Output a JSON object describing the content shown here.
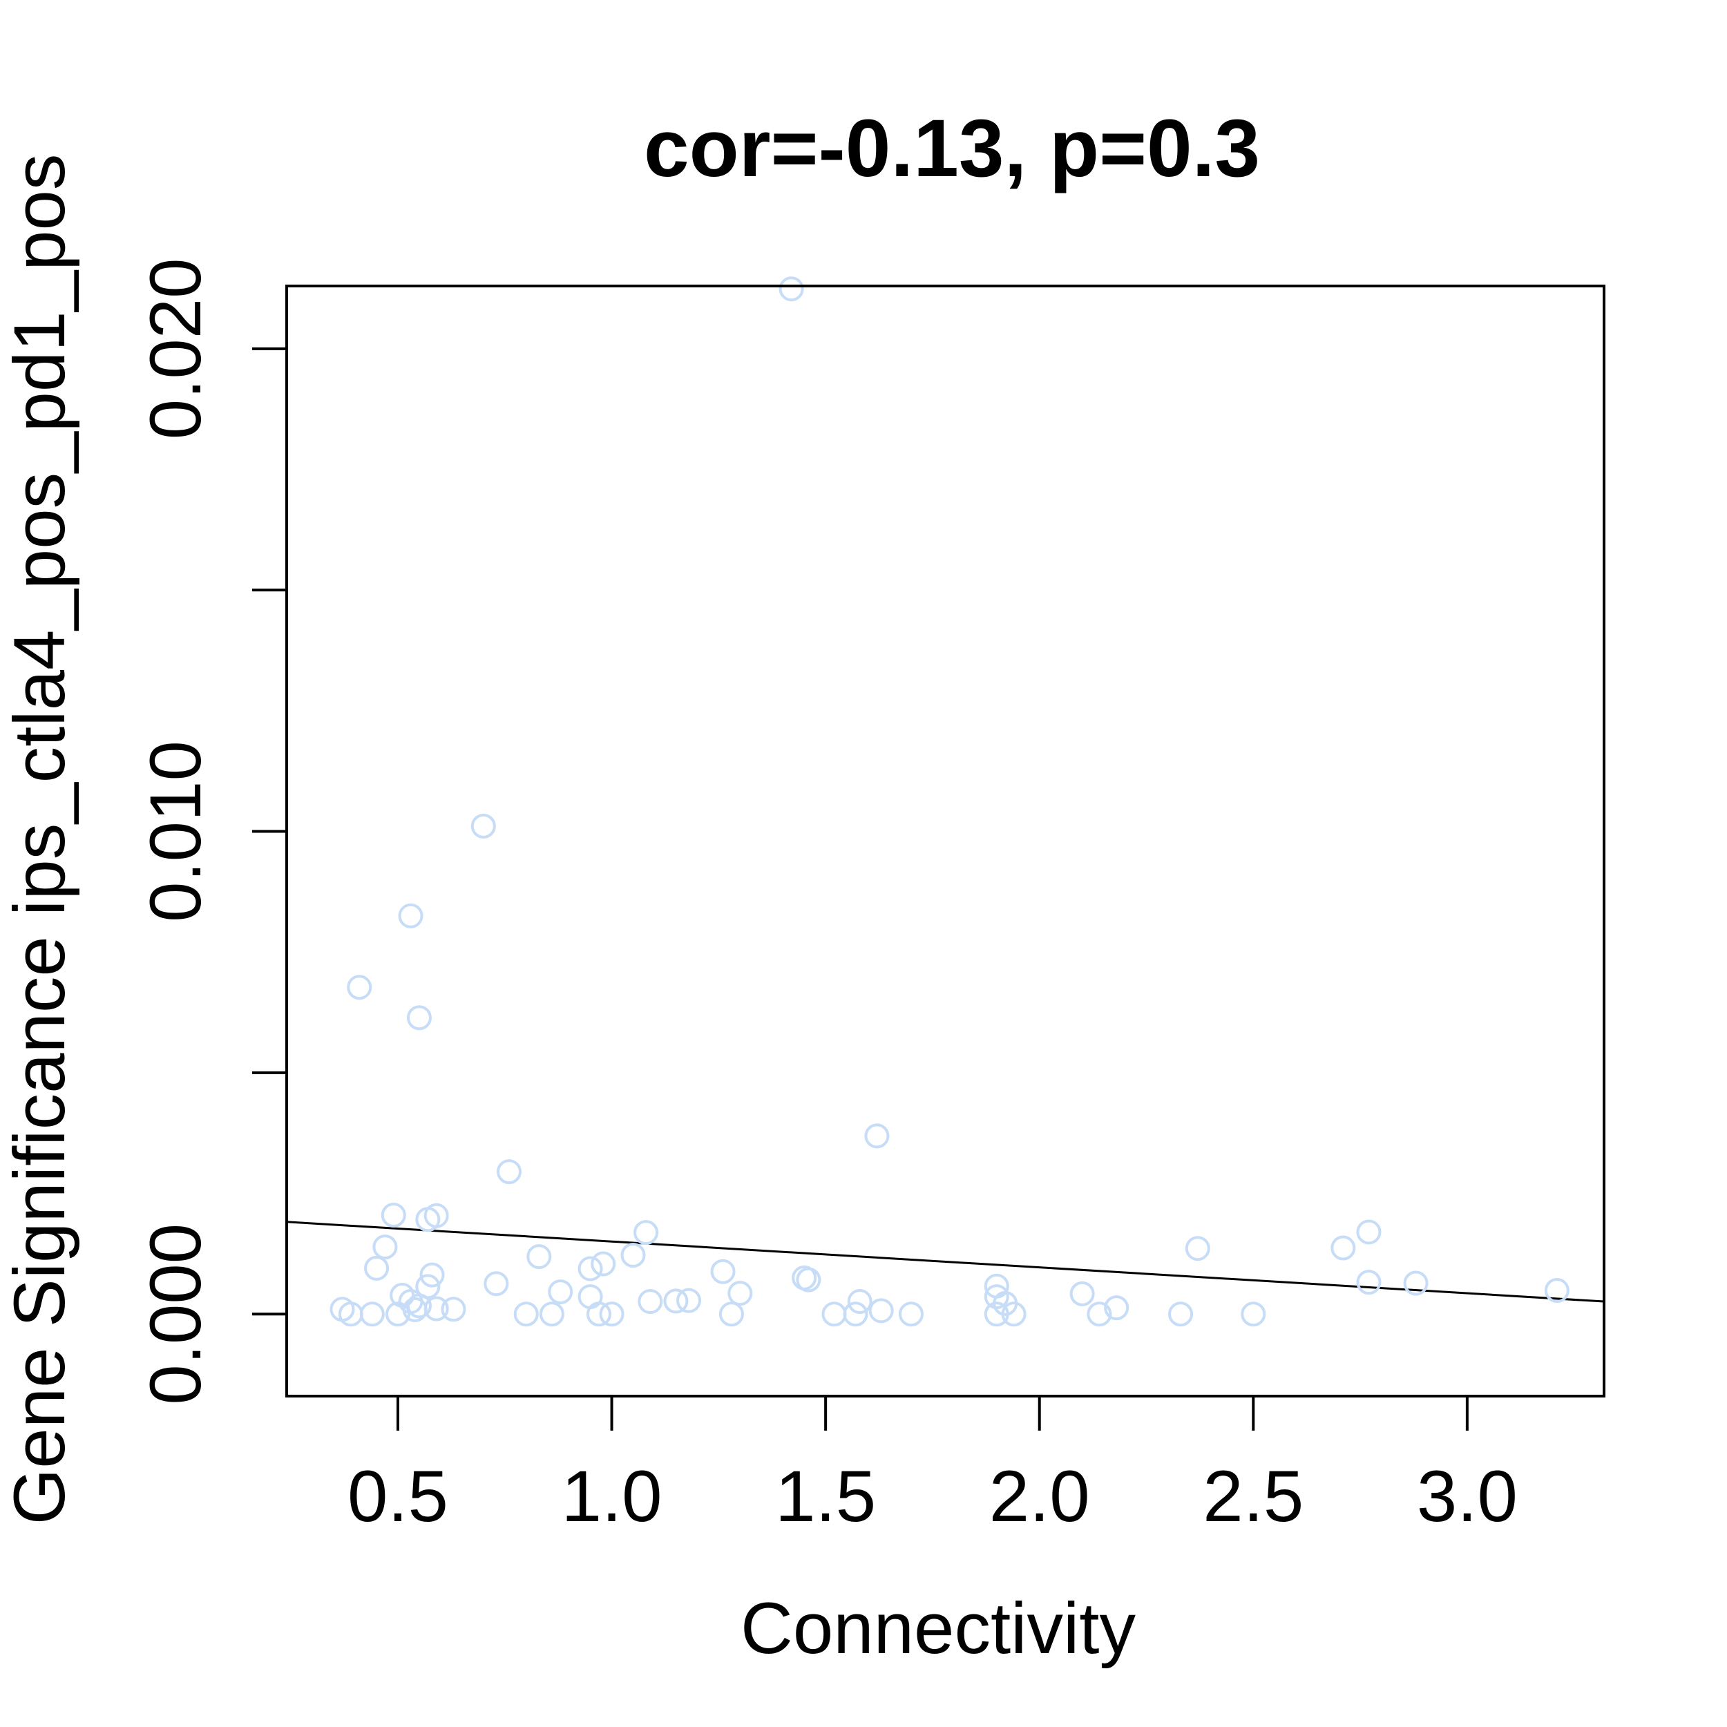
{
  "chart_data": {
    "type": "scatter",
    "title": "cor=-0.13, p=0.3",
    "xlabel": "Connectivity",
    "ylabel": "Gene Significance ips_ctla4_pos_pd1_pos",
    "xlim": [
      0.24,
      3.32
    ],
    "ylim": [
      -0.0017,
      0.0213
    ],
    "x_ticks": [
      0.5,
      1.0,
      1.5,
      2.0,
      2.5,
      3.0
    ],
    "x_tick_labels": [
      "0.5",
      "1.0",
      "1.5",
      "2.0",
      "2.5",
      "3.0"
    ],
    "y_ticks": [
      0.0,
      0.005,
      0.01,
      0.015,
      0.02
    ],
    "y_tick_labels": [
      "0.000",
      "",
      "0.010",
      "",
      "0.020"
    ],
    "point_color": "#c6dcf7",
    "line_color": "#000000",
    "fit_line": {
      "x": [
        0.24,
        3.32
      ],
      "y": [
        0.00191,
        0.00026
      ]
    },
    "grid": false,
    "points": [
      {
        "x": 1.42,
        "y": 0.02124
      },
      {
        "x": 0.7,
        "y": 0.01011
      },
      {
        "x": 0.53,
        "y": 0.00825
      },
      {
        "x": 0.41,
        "y": 0.00677
      },
      {
        "x": 0.55,
        "y": 0.00614
      },
      {
        "x": 1.62,
        "y": 0.00369
      },
      {
        "x": 0.76,
        "y": 0.00295
      },
      {
        "x": 0.49,
        "y": 0.00205
      },
      {
        "x": 0.57,
        "y": 0.00196
      },
      {
        "x": 0.59,
        "y": 0.00204
      },
      {
        "x": 1.08,
        "y": 0.00169
      },
      {
        "x": 2.77,
        "y": 0.0017
      },
      {
        "x": 0.47,
        "y": 0.00139
      },
      {
        "x": 2.71,
        "y": 0.00137
      },
      {
        "x": 2.37,
        "y": 0.00136
      },
      {
        "x": 1.05,
        "y": 0.00122
      },
      {
        "x": 0.83,
        "y": 0.00119
      },
      {
        "x": 0.98,
        "y": 0.00104
      },
      {
        "x": 0.45,
        "y": 0.00095
      },
      {
        "x": 0.95,
        "y": 0.00094
      },
      {
        "x": 1.26,
        "y": 0.00088
      },
      {
        "x": 0.58,
        "y": 0.00081
      },
      {
        "x": 1.45,
        "y": 0.00075
      },
      {
        "x": 1.46,
        "y": 0.00071
      },
      {
        "x": 0.73,
        "y": 0.00063
      },
      {
        "x": 2.77,
        "y": 0.00066
      },
      {
        "x": 2.88,
        "y": 0.00064
      },
      {
        "x": 0.57,
        "y": 0.00057
      },
      {
        "x": 1.9,
        "y": 0.00058
      },
      {
        "x": 0.88,
        "y": 0.00046
      },
      {
        "x": 3.21,
        "y": 0.00049
      },
      {
        "x": 1.3,
        "y": 0.00043
      },
      {
        "x": 2.1,
        "y": 0.00042
      },
      {
        "x": 0.51,
        "y": 0.00039
      },
      {
        "x": 1.9,
        "y": 0.00036
      },
      {
        "x": 0.95,
        "y": 0.00036
      },
      {
        "x": 1.18,
        "y": 0.00028
      },
      {
        "x": 1.15,
        "y": 0.00027
      },
      {
        "x": 1.09,
        "y": 0.00026
      },
      {
        "x": 1.58,
        "y": 0.00026
      },
      {
        "x": 0.53,
        "y": 0.00026
      },
      {
        "x": 1.92,
        "y": 0.00022
      },
      {
        "x": 0.55,
        "y": 0.00017
      },
      {
        "x": 0.37,
        "y": 0.0001
      },
      {
        "x": 0.63,
        "y": 0.0001
      },
      {
        "x": 0.59,
        "y": 0.00011
      },
      {
        "x": 2.18,
        "y": 0.00013
      },
      {
        "x": 0.54,
        "y": 9e-05
      },
      {
        "x": 1.63,
        "y": 7e-05
      },
      {
        "x": 0.39,
        "y": 0.0
      },
      {
        "x": 0.44,
        "y": 0.0
      },
      {
        "x": 0.5,
        "y": 0.0
      },
      {
        "x": 0.8,
        "y": 0.0
      },
      {
        "x": 0.86,
        "y": 0.0
      },
      {
        "x": 0.97,
        "y": 0.0
      },
      {
        "x": 1.0,
        "y": 0.0
      },
      {
        "x": 1.28,
        "y": 0.0
      },
      {
        "x": 1.52,
        "y": 0.0
      },
      {
        "x": 1.57,
        "y": 0.0
      },
      {
        "x": 1.7,
        "y": 0.0
      },
      {
        "x": 1.9,
        "y": 0.0
      },
      {
        "x": 1.94,
        "y": 0.0
      },
      {
        "x": 2.14,
        "y": 0.0
      },
      {
        "x": 2.33,
        "y": 0.0
      },
      {
        "x": 2.5,
        "y": 0.0
      }
    ]
  }
}
